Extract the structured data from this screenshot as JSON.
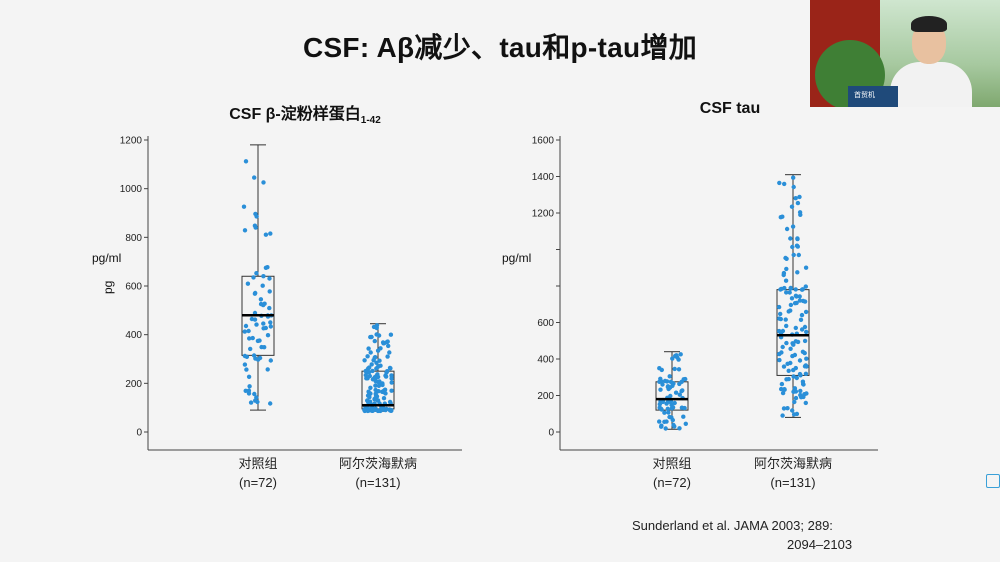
{
  "slide": {
    "title": "CSF: Aβ减少、tau和p-tau增加",
    "citation_line1": "Sunderland et al. JAMA 2003; 289:",
    "citation_line2": "2094–2103",
    "video_podium_label": "首贸机"
  },
  "colors": {
    "points": "#2a8fd8",
    "box": "#333333",
    "median": "#000000"
  },
  "chart_data": [
    {
      "type": "box",
      "title": "CSF β-淀粉样蛋白",
      "title_subscript": "1-42",
      "ylabel": "pg/ml",
      "ylabel_rotated": "pg",
      "ylim": [
        0,
        1200
      ],
      "yticks": [
        0,
        200,
        400,
        600,
        800,
        1000,
        1200
      ],
      "ytick_labels": [
        "0",
        "200",
        "400",
        "600",
        "800",
        "1000",
        "1200"
      ],
      "categories": [
        {
          "name": "对照组",
          "n_label": "(n=72)",
          "stats": {
            "min": 90,
            "q1": 315,
            "median": 480,
            "q3": 640,
            "max": 1180
          }
        },
        {
          "name": "阿尔茨海默病",
          "n_label": "(n=131)",
          "stats": {
            "min": 85,
            "q1": 95,
            "median": 110,
            "q3": 250,
            "max": 445
          }
        }
      ]
    },
    {
      "type": "box",
      "title": "CSF tau",
      "ylabel": "pg/ml",
      "ylim": [
        0,
        1600
      ],
      "yticks": [
        0,
        200,
        400,
        600,
        800,
        1000,
        1200,
        1400,
        1600
      ],
      "ytick_labels": [
        "0",
        "200",
        "400",
        "600",
        "",
        "",
        "1200",
        "1400",
        "1600"
      ],
      "categories": [
        {
          "name": "对照组",
          "n_label": "(n=72)",
          "stats": {
            "min": 15,
            "q1": 120,
            "median": 180,
            "q3": 275,
            "max": 440
          }
        },
        {
          "name": "阿尔茨海默病",
          "n_label": "(n=131)",
          "stats": {
            "min": 80,
            "q1": 310,
            "median": 530,
            "q3": 780,
            "max": 1410
          }
        }
      ]
    }
  ]
}
